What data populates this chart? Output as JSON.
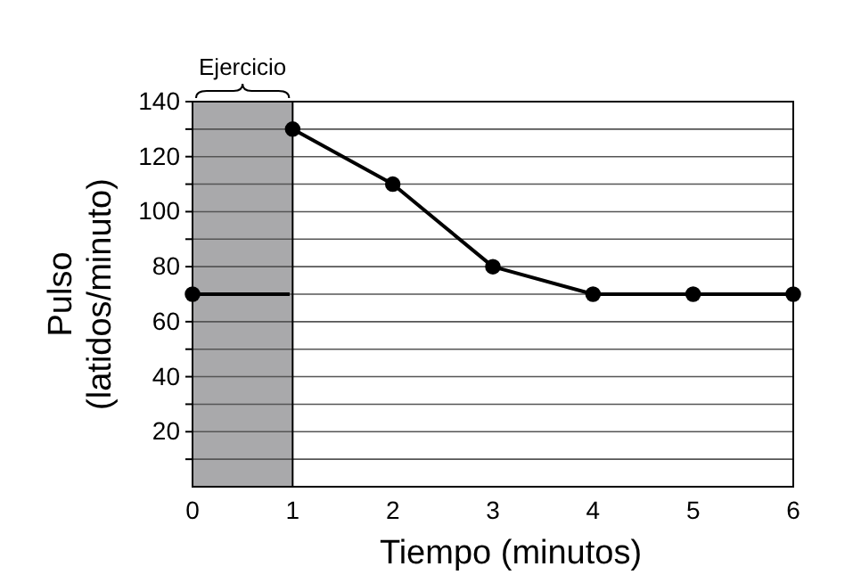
{
  "chart_data": {
    "type": "line",
    "xlabel": "Tiempo (minutos)",
    "ylabel": "Pulso\n(latidos/minuto)",
    "xlim": [
      0,
      6
    ],
    "ylim": [
      0,
      140
    ],
    "xticks": [
      0,
      1,
      2,
      3,
      4,
      5,
      6
    ],
    "yticks": [
      {
        "value": 10,
        "label": null
      },
      20,
      {
        "value": 30,
        "label": null
      },
      40,
      {
        "value": 50,
        "label": null
      },
      60,
      {
        "value": 70,
        "label": null
      },
      80,
      {
        "value": 90,
        "label": null
      },
      100,
      {
        "value": 110,
        "label": null
      },
      120,
      {
        "value": 130,
        "label": null
      },
      140
    ],
    "grid": "y",
    "line_style": "solid",
    "ref_lines": [
      {
        "axis": "x",
        "value": 1,
        "color": "#000000"
      }
    ],
    "bands": [
      {
        "axis": "x",
        "from": 0,
        "to": 1,
        "label": "Ejercicio",
        "color": "#a9a9ab"
      }
    ],
    "series": [
      {
        "type": "scatter",
        "color": "#000000",
        "x": [
          0
        ],
        "values": [
          70
        ],
        "marker": "circle"
      },
      {
        "color": "#000000",
        "x": [
          0,
          0.97
        ],
        "values": [
          70,
          70
        ],
        "marker": "none"
      },
      {
        "color": "#000000",
        "x": [
          1,
          2,
          3,
          4,
          5,
          6
        ],
        "values": [
          130,
          110,
          80,
          70,
          70,
          70
        ],
        "marker": "circle"
      }
    ]
  }
}
